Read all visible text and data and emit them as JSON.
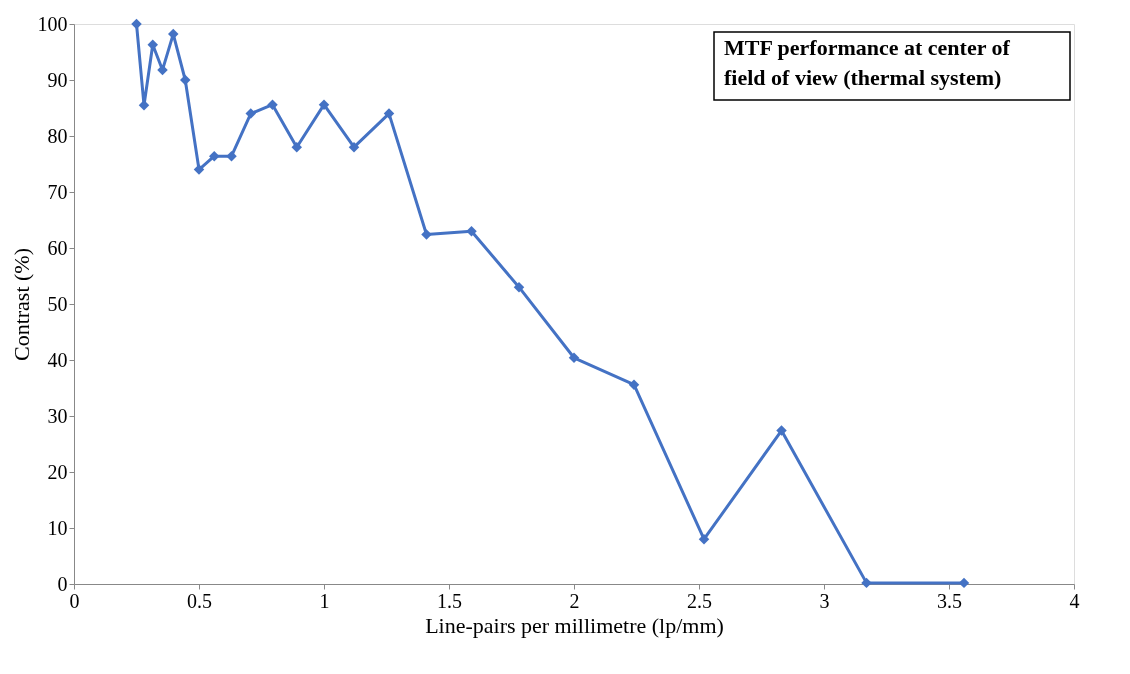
{
  "chart_data": {
    "type": "line",
    "xlabel": "Line-pairs per millimetre (lp/mm)",
    "ylabel": "Contrast (%)",
    "annotations": [
      "MTF performance at center of\nfield of view (thermal system)"
    ],
    "x": [
      0.25,
      0.28,
      0.315,
      0.354,
      0.397,
      0.445,
      0.5,
      0.561,
      0.63,
      0.707,
      0.794,
      0.891,
      1,
      1.12,
      1.26,
      1.41,
      1.59,
      1.78,
      2,
      2.24,
      2.52,
      2.83,
      3.17,
      3.56
    ],
    "series": [
      {
        "color": "#4472c4",
        "values": [
          100,
          85.5,
          96.3,
          91.8,
          98.2,
          90,
          74,
          76.4,
          76.4,
          84,
          85.6,
          78,
          85.6,
          78,
          84,
          62.4,
          63,
          53,
          40.4,
          35.6,
          8,
          27.4,
          0.2,
          0.2
        ]
      }
    ],
    "xlim": [
      0,
      4
    ],
    "xticks": [
      0,
      0.5,
      1,
      1.5,
      2,
      2.5,
      3,
      3.5,
      4
    ],
    "ylim": [
      0,
      100
    ],
    "yticks": [
      0,
      10,
      20,
      30,
      40,
      50,
      60,
      70,
      80,
      90,
      100
    ],
    "grid": false,
    "marker": "diamond",
    "line_style": "solid"
  }
}
